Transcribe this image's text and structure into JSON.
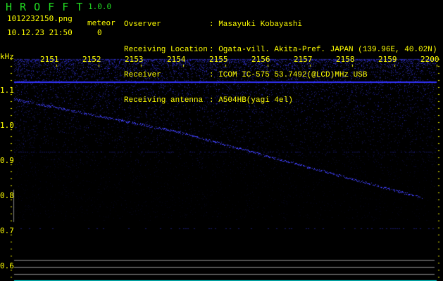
{
  "app": {
    "title": "H R O F F T",
    "version": "1.0.0"
  },
  "file": {
    "name": "1012232150.png",
    "datetime": "10.12.23 21:50"
  },
  "meteor": {
    "label": "meteor",
    "count": "0"
  },
  "info": [
    {
      "label": "Ovserver",
      "value": ": Masayuki Kobayashi"
    },
    {
      "label": "Receiving Location",
      "value": ": Ogata-vill. Akita-Pref. JAPAN (139.96E, 40.02N)"
    },
    {
      "label": "Receiver",
      "value": ": ICOM IC-575 53.7492(@LCD)MHz USB"
    },
    {
      "label": "Receiving antenna",
      "value": ": A504HB(yagi 4el)"
    }
  ],
  "axes": {
    "y_unit": "kHz",
    "x_ticks": [
      "2151",
      "2152",
      "2153",
      "2154",
      "2155",
      "2156",
      "2157",
      "2158",
      "2159",
      "2200"
    ],
    "y_ticks": [
      "1.1",
      "1.0",
      "0.9",
      "0.8",
      "0.7",
      "0.6"
    ]
  },
  "colors": {
    "text": "#ffff00",
    "title": "#22dd22",
    "signal": "#3333ff",
    "noise": "#1a1a90",
    "gridline": "#888888",
    "baseline": "#00e0e0"
  }
}
